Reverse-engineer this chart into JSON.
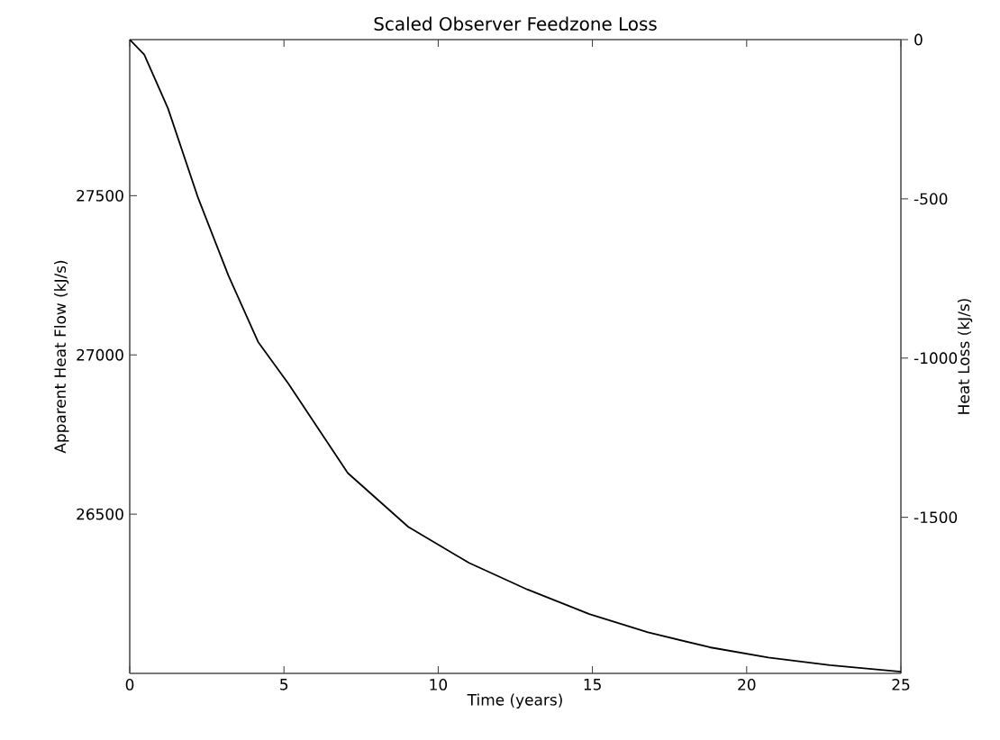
{
  "chart_data": {
    "type": "line",
    "title": "Scaled Observer Feedzone Loss",
    "xlabel": "Time (years)",
    "ylabel": "Apparent Heat Flow (kJ/s)",
    "y2label": "Heat Loss (kJ/s)",
    "xlim": [
      0,
      25
    ],
    "xticks": [
      0,
      5,
      10,
      15,
      20,
      25
    ],
    "ylim": [
      26000,
      27990
    ],
    "yticks": [
      26500,
      27000,
      27500
    ],
    "y2lim": [
      -1990,
      0
    ],
    "y2ticks": [
      -1500,
      -1000,
      -500,
      0
    ],
    "grid": false,
    "legend": false,
    "marker": "none",
    "line_style": "solid",
    "series": [
      {
        "color": "#000000",
        "axis": "y2",
        "x": [
          0,
          0.47,
          1.24,
          2.22,
          3.2,
          4.16,
          5.14,
          7.07,
          9.03,
          11.0,
          12.9,
          14.9,
          16.8,
          18.8,
          20.7,
          22.7,
          25
        ],
        "values": [
          0,
          -47,
          -216,
          -498,
          -741,
          -949,
          -1080,
          -1361,
          -1530,
          -1643,
          -1727,
          -1804,
          -1861,
          -1908,
          -1940,
          -1964,
          -1985
        ]
      }
    ]
  }
}
